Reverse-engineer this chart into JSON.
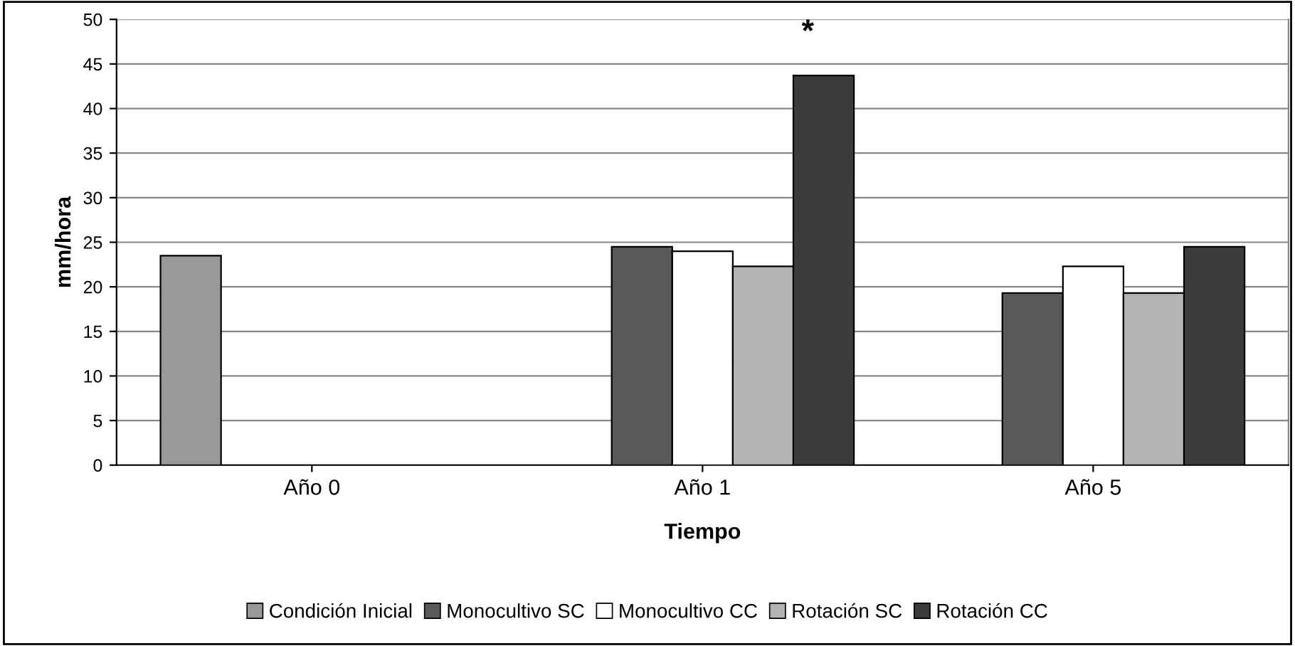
{
  "chart_data": {
    "type": "bar",
    "xlabel": "Tiempo",
    "ylabel": "mm/hora",
    "categories": [
      "Año 0",
      "Año 1",
      "Año 5"
    ],
    "series": [
      {
        "name": "Condición Inicial",
        "color": "#999999",
        "values": [
          23.5,
          null,
          null
        ]
      },
      {
        "name": "Monocultivo SC",
        "color": "#595959",
        "values": [
          null,
          24.5,
          19.3
        ]
      },
      {
        "name": "Monocultivo CC",
        "color": "#ffffff",
        "values": [
          null,
          24,
          22.3
        ]
      },
      {
        "name": "Rotación SC",
        "color": "#b3b3b3",
        "values": [
          null,
          22.3,
          19.3
        ]
      },
      {
        "name": "Rotación CC",
        "color": "#3c3c3c",
        "values": [
          null,
          43.7,
          24.5
        ]
      }
    ],
    "ylim": [
      0,
      50
    ],
    "yticks": [
      0,
      5,
      10,
      15,
      20,
      25,
      30,
      35,
      40,
      45,
      50
    ],
    "grid": "y",
    "legend": "bottom",
    "annotations": [
      "*"
    ]
  }
}
